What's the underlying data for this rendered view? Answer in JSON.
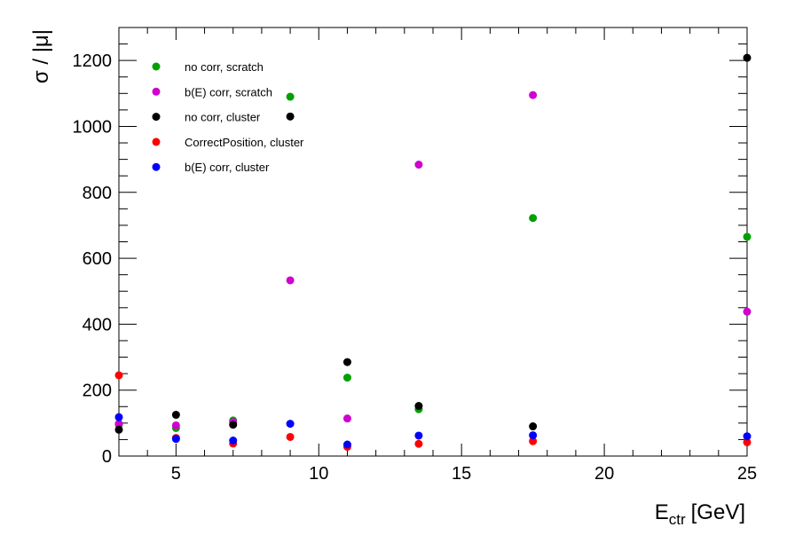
{
  "chart_data": {
    "type": "scatter",
    "xlabel": "E",
    "xlabel_subscript": "ctr",
    "xlabel_unit": "[GeV]",
    "ylabel": "σ / |μ|",
    "xlim": [
      3,
      25
    ],
    "ylim": [
      0,
      1300
    ],
    "x_ticks": [
      5,
      10,
      15,
      20,
      25
    ],
    "x_tick_labels": [
      "5",
      "10",
      "15",
      "20",
      "25"
    ],
    "y_ticks": [
      0,
      200,
      400,
      600,
      800,
      1000,
      1200
    ],
    "y_tick_labels": [
      "0",
      "200",
      "400",
      "600",
      "800",
      "1000",
      "1200"
    ],
    "grid": false,
    "legend_position": "top-left",
    "series": [
      {
        "name": "no corr, scratch",
        "color": "#00a000",
        "points": [
          [
            3,
            95
          ],
          [
            5,
            85
          ],
          [
            7,
            108
          ],
          [
            9,
            1090
          ],
          [
            11,
            238
          ],
          [
            13.5,
            142
          ],
          [
            17.5,
            722
          ],
          [
            25,
            665
          ]
        ]
      },
      {
        "name": "b(E) corr, scratch",
        "color": "#d000d0",
        "points": [
          [
            3,
            98
          ],
          [
            5,
            93
          ],
          [
            7,
            103
          ],
          [
            9,
            533
          ],
          [
            11,
            114
          ],
          [
            13.5,
            884
          ],
          [
            17.5,
            1095
          ],
          [
            25,
            438
          ]
        ]
      },
      {
        "name": "no corr, cluster",
        "color": "#000000",
        "points": [
          [
            3,
            80
          ],
          [
            5,
            125
          ],
          [
            7,
            95
          ],
          [
            9,
            1030
          ],
          [
            11,
            285
          ],
          [
            13.5,
            152
          ],
          [
            17.5,
            90
          ],
          [
            25,
            1208
          ]
        ]
      },
      {
        "name": "CorrectPosition, cluster",
        "color": "#ff0000",
        "points": [
          [
            3,
            245
          ],
          [
            5,
            55
          ],
          [
            7,
            38
          ],
          [
            9,
            58
          ],
          [
            11,
            28
          ],
          [
            13.5,
            37
          ],
          [
            17.5,
            45
          ],
          [
            25,
            42
          ]
        ]
      },
      {
        "name": "b(E) corr, cluster",
        "color": "#0000ff",
        "points": [
          [
            3,
            118
          ],
          [
            5,
            52
          ],
          [
            7,
            47
          ],
          [
            9,
            98
          ],
          [
            11,
            35
          ],
          [
            13.5,
            62
          ],
          [
            17.5,
            63
          ],
          [
            25,
            60
          ]
        ]
      }
    ]
  }
}
